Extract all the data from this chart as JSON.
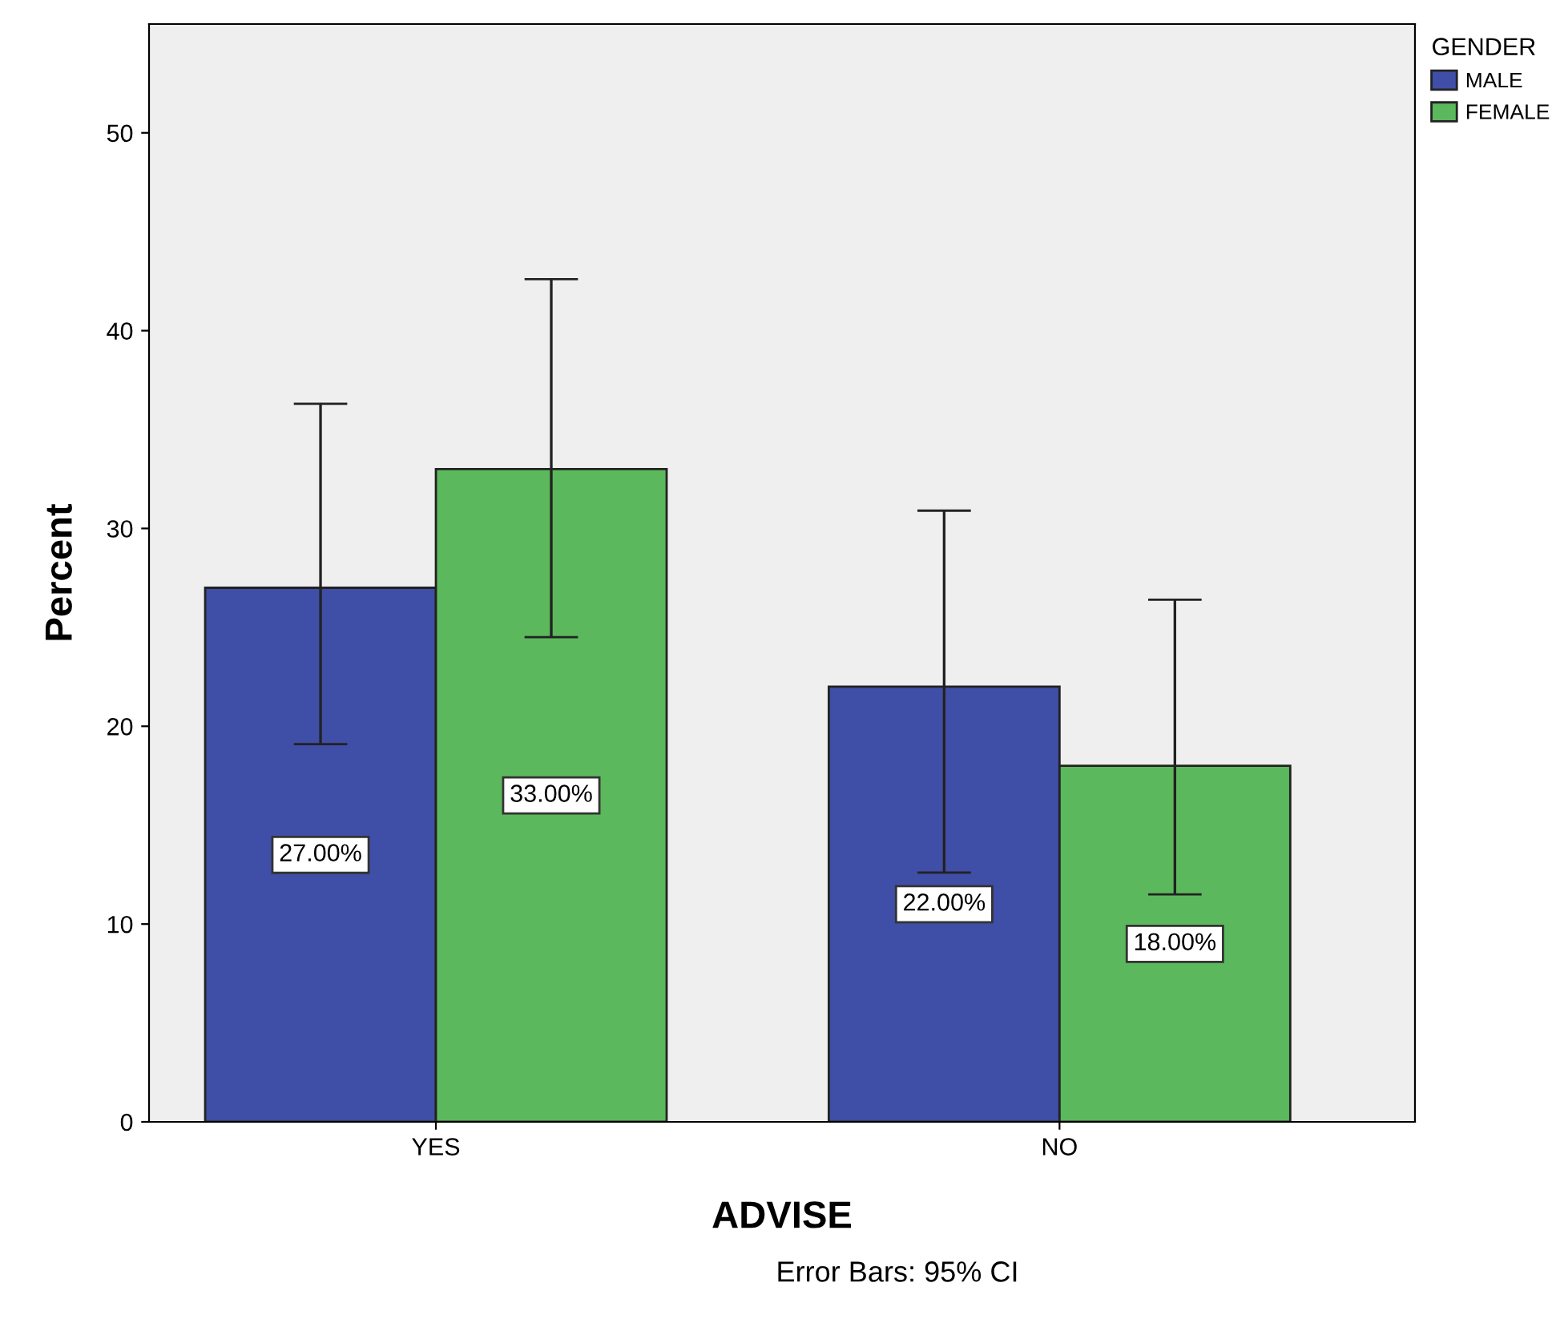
{
  "chart_data": {
    "type": "bar",
    "xlabel": "ADVISE",
    "ylabel": "Percent",
    "legend_title": "GENDER",
    "categories": [
      "YES",
      "NO"
    ],
    "series": [
      {
        "name": "MALE",
        "color": "#3f4ea6",
        "values": [
          27,
          22
        ],
        "errors": [
          [
            19.1,
            36.3
          ],
          [
            12.6,
            30.9
          ]
        ],
        "value_labels": [
          "27.00%",
          "22.00%"
        ]
      },
      {
        "name": "FEMALE",
        "color": "#5cb85c",
        "values": [
          33,
          18
        ],
        "errors": [
          [
            24.5,
            42.6
          ],
          [
            11.5,
            26.4
          ]
        ],
        "value_labels": [
          "33.00%",
          "18.00%"
        ]
      }
    ],
    "ylim": [
      0,
      55.5
    ],
    "yticks": [
      0,
      10,
      20,
      30,
      40,
      50
    ],
    "grid": false,
    "legend": "top right",
    "annotations": [
      "Error Bars: 95% CI"
    ]
  }
}
